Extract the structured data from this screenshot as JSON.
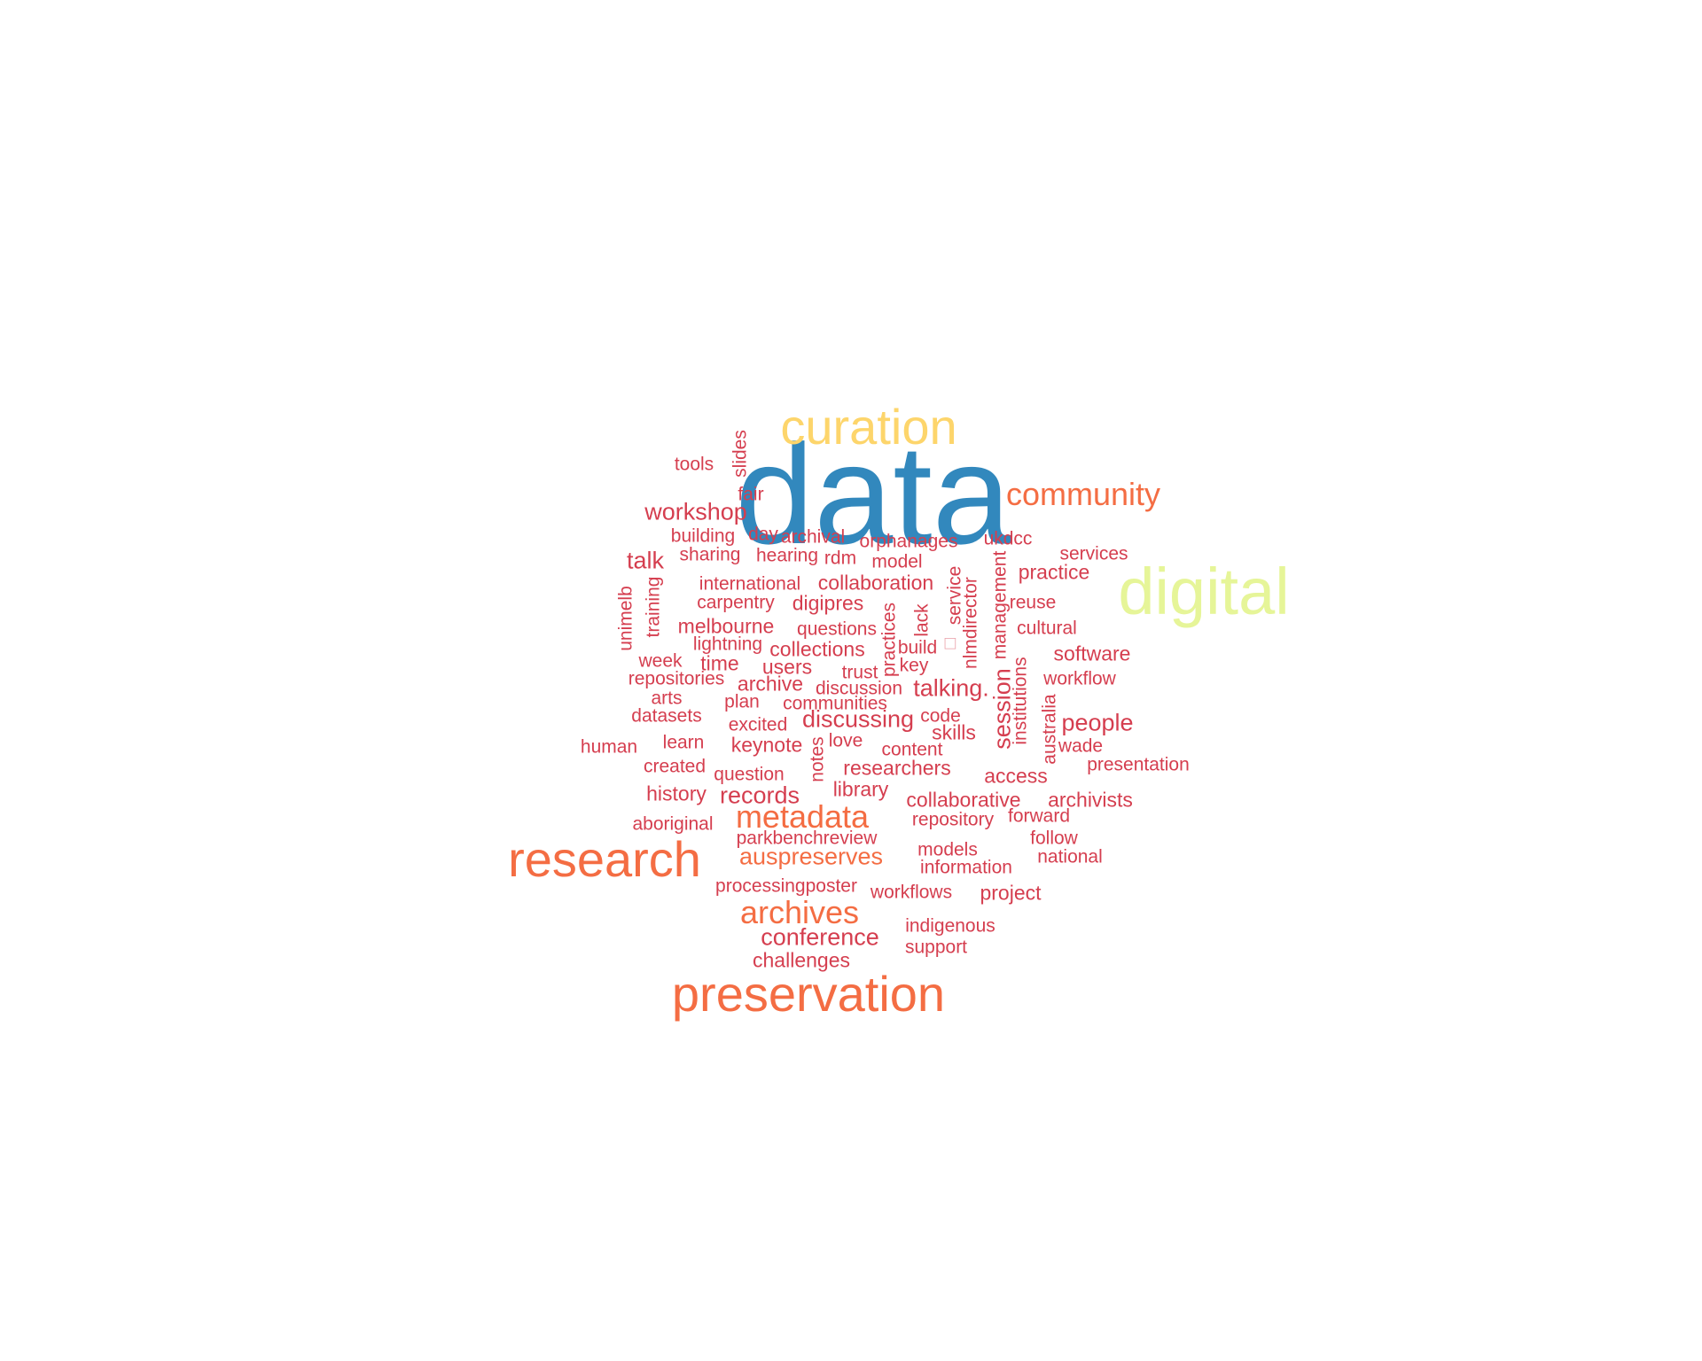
{
  "wordcloud": {
    "words": [
      {
        "text": "data",
        "color": "blue"
      },
      {
        "text": "curation",
        "color": "gold"
      },
      {
        "text": "digital",
        "color": "lime"
      },
      {
        "text": "community",
        "color": "orange"
      },
      {
        "text": "research",
        "color": "orange"
      },
      {
        "text": "preservation",
        "color": "orange"
      },
      {
        "text": "archives",
        "color": "orange"
      },
      {
        "text": "metadata",
        "color": "orange"
      },
      {
        "text": "auspreserves",
        "color": "orange"
      },
      {
        "text": "conference",
        "color": "red"
      },
      {
        "text": "workshop",
        "color": "red"
      },
      {
        "text": "talk",
        "color": "red"
      },
      {
        "text": "tools",
        "color": "red"
      },
      {
        "text": "slides",
        "color": "red"
      },
      {
        "text": "fair",
        "color": "red"
      },
      {
        "text": "building",
        "color": "red"
      },
      {
        "text": "day",
        "color": "red"
      },
      {
        "text": "archival",
        "color": "red"
      },
      {
        "text": "orphanages",
        "color": "red"
      },
      {
        "text": "ukdcc",
        "color": "red"
      },
      {
        "text": "sharing",
        "color": "red"
      },
      {
        "text": "hearing",
        "color": "red"
      },
      {
        "text": "rdm",
        "color": "red"
      },
      {
        "text": "model",
        "color": "red"
      },
      {
        "text": "services",
        "color": "red"
      },
      {
        "text": "practice",
        "color": "red"
      },
      {
        "text": "international",
        "color": "red"
      },
      {
        "text": "collaboration",
        "color": "red"
      },
      {
        "text": "carpentry",
        "color": "red"
      },
      {
        "text": "digipres",
        "color": "red"
      },
      {
        "text": "reuse",
        "color": "red"
      },
      {
        "text": "unimelb",
        "color": "red"
      },
      {
        "text": "training",
        "color": "red"
      },
      {
        "text": "melbourne",
        "color": "red"
      },
      {
        "text": "questions",
        "color": "red"
      },
      {
        "text": "cultural",
        "color": "red"
      },
      {
        "text": "lightning",
        "color": "red"
      },
      {
        "text": "collections",
        "color": "red"
      },
      {
        "text": "build",
        "color": "red"
      },
      {
        "text": "software",
        "color": "red"
      },
      {
        "text": "week",
        "color": "red"
      },
      {
        "text": "time",
        "color": "red"
      },
      {
        "text": "users",
        "color": "red"
      },
      {
        "text": "trust",
        "color": "red"
      },
      {
        "text": "key",
        "color": "red"
      },
      {
        "text": "repositories",
        "color": "red"
      },
      {
        "text": "archive",
        "color": "red"
      },
      {
        "text": "discussion",
        "color": "red"
      },
      {
        "text": "talking.",
        "color": "red"
      },
      {
        "text": "workflow",
        "color": "red"
      },
      {
        "text": "arts",
        "color": "red"
      },
      {
        "text": "plan",
        "color": "red"
      },
      {
        "text": "communities",
        "color": "red"
      },
      {
        "text": "datasets",
        "color": "red"
      },
      {
        "text": "discussing",
        "color": "red"
      },
      {
        "text": "code",
        "color": "red"
      },
      {
        "text": "excited",
        "color": "red"
      },
      {
        "text": "skills",
        "color": "red"
      },
      {
        "text": "people",
        "color": "red"
      },
      {
        "text": "human",
        "color": "red"
      },
      {
        "text": "learn",
        "color": "red"
      },
      {
        "text": "keynote",
        "color": "red"
      },
      {
        "text": "love",
        "color": "red"
      },
      {
        "text": "content",
        "color": "red"
      },
      {
        "text": "wade",
        "color": "red"
      },
      {
        "text": "created",
        "color": "red"
      },
      {
        "text": "researchers",
        "color": "red"
      },
      {
        "text": "presentation",
        "color": "red"
      },
      {
        "text": "question",
        "color": "red"
      },
      {
        "text": "access",
        "color": "red"
      },
      {
        "text": "history",
        "color": "red"
      },
      {
        "text": "records",
        "color": "red"
      },
      {
        "text": "library",
        "color": "red"
      },
      {
        "text": "collaborative",
        "color": "red"
      },
      {
        "text": "archivists",
        "color": "red"
      },
      {
        "text": "aboriginal",
        "color": "red"
      },
      {
        "text": "repository",
        "color": "red"
      },
      {
        "text": "forward",
        "color": "red"
      },
      {
        "text": "parkbenchreview",
        "color": "red"
      },
      {
        "text": "follow",
        "color": "red"
      },
      {
        "text": "models",
        "color": "red"
      },
      {
        "text": "national",
        "color": "red"
      },
      {
        "text": "information",
        "color": "red"
      },
      {
        "text": "processingposter",
        "color": "red"
      },
      {
        "text": "workflows",
        "color": "red"
      },
      {
        "text": "project",
        "color": "red"
      },
      {
        "text": "indigenous",
        "color": "red"
      },
      {
        "text": "support",
        "color": "red"
      },
      {
        "text": "challenges",
        "color": "red"
      },
      {
        "text": "practices",
        "color": "red"
      },
      {
        "text": "lack",
        "color": "red"
      },
      {
        "text": "service",
        "color": "red"
      },
      {
        "text": "nlmdirector",
        "color": "red"
      },
      {
        "text": "management",
        "color": "red"
      },
      {
        "text": "session",
        "color": "red"
      },
      {
        "text": "institutions",
        "color": "red"
      },
      {
        "text": "australia",
        "color": "red"
      },
      {
        "text": "notes",
        "color": "red"
      },
      {
        "text": "□",
        "color": "red"
      }
    ],
    "colors": {
      "red": "#d53e4f",
      "orange": "#f46d43",
      "gold": "#fdd56b",
      "lime": "#e6f598",
      "blue": "#3288bd"
    }
  }
}
